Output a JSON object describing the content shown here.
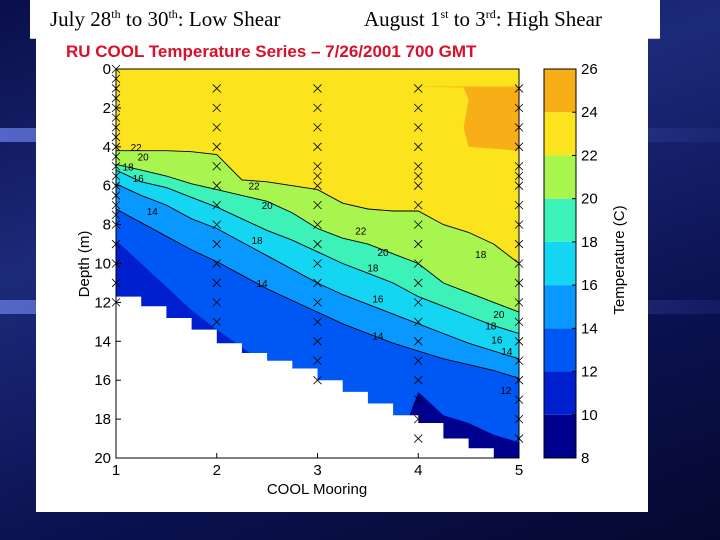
{
  "slide": {
    "left_header": {
      "p1": "July 28",
      "s1": "th",
      "p2": " to 30",
      "s2": "th",
      "p3": ": Low Shear"
    },
    "right_header": {
      "p1": "August 1",
      "s1": "st",
      "p2": " to 3",
      "s2": "rd",
      "p3": ": High Shear"
    }
  },
  "chart_data": {
    "type": "heatmap",
    "title": "RU COOL Temperature Series – 7/26/2001 700 GMT",
    "xlabel": "COOL Mooring",
    "ylabel": "Depth (m)",
    "colorbar_label": "Temperature (C)",
    "xlim": [
      1,
      5
    ],
    "ylim": [
      0,
      20
    ],
    "y_reversed": true,
    "x_ticks": [
      1,
      2,
      3,
      4,
      5
    ],
    "y_ticks": [
      0,
      2,
      4,
      6,
      8,
      10,
      12,
      14,
      16,
      18,
      20
    ],
    "colorbar_range": [
      8,
      26
    ],
    "colorbar_ticks": [
      8,
      10,
      12,
      14,
      16,
      18,
      20,
      22,
      24,
      26
    ],
    "colormap": [
      {
        "min": 8,
        "max": 10,
        "color": "#00008f"
      },
      {
        "min": 10,
        "max": 12,
        "color": "#0020d0"
      },
      {
        "min": 12,
        "max": 14,
        "color": "#0058f4"
      },
      {
        "min": 14,
        "max": 16,
        "color": "#0898ff"
      },
      {
        "min": 16,
        "max": 18,
        "color": "#14d6f2"
      },
      {
        "min": 18,
        "max": 20,
        "color": "#3cf2b8"
      },
      {
        "min": 20,
        "max": 22,
        "color": "#a8f550"
      },
      {
        "min": 22,
        "max": 24,
        "color": "#fbe41e"
      },
      {
        "min": 24,
        "max": 26,
        "color": "#f8ae16"
      },
      {
        "min": 26,
        "max": 28,
        "color": "#e45a0e"
      }
    ],
    "x_grid": [
      1,
      1.25,
      1.5,
      1.75,
      2,
      2.25,
      2.5,
      2.75,
      3,
      3.25,
      3.5,
      3.75,
      4,
      4.25,
      4.5,
      4.75,
      5
    ],
    "layer_boundaries": [
      {
        "value": 22,
        "depth": [
          4.2,
          4.2,
          4.2,
          4.25,
          4.4,
          5.7,
          5.8,
          6.0,
          6.2,
          6.9,
          7.2,
          7.3,
          7.3,
          8.0,
          8.4,
          9.0,
          10.0
        ]
      },
      {
        "value": 20,
        "depth": [
          4.9,
          5.2,
          5.5,
          5.9,
          6.2,
          6.5,
          6.8,
          7.4,
          8.2,
          8.7,
          9.0,
          9.5,
          10.0,
          11.0,
          11.5,
          12.0,
          12.5
        ]
      },
      {
        "value": 18,
        "depth": [
          5.2,
          5.8,
          6.1,
          6.6,
          7.1,
          7.7,
          8.3,
          8.8,
          9.4,
          10.0,
          10.5,
          11.0,
          11.7,
          12.2,
          12.7,
          13.2,
          13.6
        ]
      },
      {
        "value": 16,
        "depth": [
          5.9,
          6.5,
          7.0,
          7.7,
          8.2,
          8.9,
          9.6,
          10.3,
          11.0,
          11.6,
          12.1,
          12.6,
          13.1,
          13.6,
          14.1,
          14.5,
          14.9
        ]
      },
      {
        "value": 14,
        "depth": [
          7.2,
          7.9,
          8.6,
          9.3,
          9.9,
          10.6,
          11.3,
          11.9,
          12.5,
          13.1,
          13.6,
          14.1,
          14.5,
          14.9,
          15.2,
          15.5,
          15.9
        ]
      },
      {
        "value": 12,
        "depth": [
          8.8,
          10.0,
          11.2,
          12.4,
          13.4,
          14.3,
          15.3,
          16.3,
          17.4,
          17.9,
          18.3,
          18.4,
          18.1,
          18.2,
          18.6,
          19.0,
          19.5
        ]
      },
      {
        "value": 10,
        "depth": [
          20,
          20,
          20,
          20,
          20,
          20,
          20,
          20,
          20,
          20,
          20,
          20,
          16.6,
          17.8,
          18.2,
          18.8,
          19.2
        ]
      }
    ],
    "warm_pool_24": [
      [
        3.4,
        0.9
      ],
      [
        3.9,
        0.9
      ],
      [
        4.45,
        0.95
      ],
      [
        4.5,
        1.6
      ],
      [
        4.45,
        3.0
      ],
      [
        4.5,
        4.0
      ],
      [
        5,
        4.2
      ],
      [
        5,
        0.9
      ]
    ],
    "bottom_depth": [
      11.7,
      12.2,
      12.8,
      13.4,
      14.1,
      14.6,
      15.0,
      15.4,
      16.0,
      16.6,
      17.2,
      17.8,
      18.2,
      19.0,
      19.5,
      20,
      20
    ],
    "contour_labels": [
      {
        "text": "22",
        "x": 1.2,
        "y": 4.0
      },
      {
        "text": "20",
        "x": 1.27,
        "y": 4.5
      },
      {
        "text": "18",
        "x": 1.12,
        "y": 5.0
      },
      {
        "text": "16",
        "x": 1.22,
        "y": 5.6
      },
      {
        "text": "14",
        "x": 1.36,
        "y": 7.3
      },
      {
        "text": "22",
        "x": 2.37,
        "y": 6.0
      },
      {
        "text": "20",
        "x": 2.5,
        "y": 7.0
      },
      {
        "text": "18",
        "x": 2.4,
        "y": 8.8
      },
      {
        "text": "14",
        "x": 2.45,
        "y": 11.0
      },
      {
        "text": "22",
        "x": 3.43,
        "y": 8.3
      },
      {
        "text": "20",
        "x": 3.65,
        "y": 9.4
      },
      {
        "text": "18",
        "x": 3.55,
        "y": 10.2
      },
      {
        "text": "16",
        "x": 3.6,
        "y": 11.8
      },
      {
        "text": "14",
        "x": 3.6,
        "y": 13.7
      },
      {
        "text": "18",
        "x": 4.62,
        "y": 9.5
      },
      {
        "text": "20",
        "x": 4.8,
        "y": 12.6
      },
      {
        "text": "18",
        "x": 4.72,
        "y": 13.2
      },
      {
        "text": "16",
        "x": 4.78,
        "y": 13.9
      },
      {
        "text": "14",
        "x": 4.88,
        "y": 14.5
      },
      {
        "text": "12",
        "x": 4.87,
        "y": 16.5
      }
    ],
    "sample_points": [
      {
        "x": 1,
        "depths": [
          0,
          0.5,
          1,
          1.5,
          2,
          2.5,
          3,
          3.5,
          4,
          4.5,
          5,
          5.5,
          6,
          6.5,
          7,
          7.5,
          8,
          9,
          10,
          11,
          12
        ]
      },
      {
        "x": 2,
        "depths": [
          1,
          2,
          3,
          4,
          5,
          6,
          7,
          8,
          9,
          10,
          11,
          12,
          13
        ]
      },
      {
        "x": 3,
        "depths": [
          1,
          2,
          3,
          4,
          5,
          5.5,
          6,
          7,
          8,
          9,
          10,
          11,
          12,
          13,
          14,
          15,
          16
        ]
      },
      {
        "x": 4,
        "depths": [
          1,
          2,
          3,
          4,
          5,
          5.5,
          6,
          7,
          8,
          9,
          10,
          11,
          12,
          13,
          14,
          15,
          16,
          17,
          18,
          19
        ]
      },
      {
        "x": 5,
        "depths": [
          1,
          2,
          3,
          4,
          5,
          5.5,
          6,
          7,
          8,
          9,
          10,
          11,
          12,
          13,
          14,
          15,
          16,
          17,
          18,
          19
        ]
      }
    ]
  }
}
